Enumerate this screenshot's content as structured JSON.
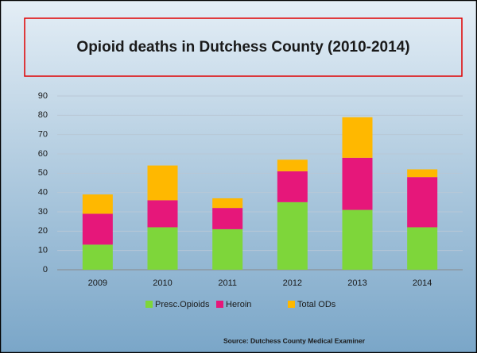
{
  "chart_data": {
    "type": "stacked_bar",
    "title": "Opioid deaths in Dutchess County (2010-2014)",
    "categories": [
      "2009",
      "2010",
      "2011",
      "2012",
      "2013",
      "2014"
    ],
    "series": [
      {
        "name": "Presc.Opioids",
        "color": "#7ed63a",
        "values": [
          13,
          22,
          21,
          35,
          31,
          22
        ]
      },
      {
        "name": "Heroin",
        "color": "#e6177a",
        "values": [
          16,
          14,
          11,
          16,
          27,
          26
        ]
      },
      {
        "name": "Total ODs",
        "color": "#ffb800",
        "values": [
          10,
          18,
          5,
          6,
          21,
          4
        ]
      }
    ],
    "ylim": [
      0,
      90
    ],
    "yticks": [
      0,
      10,
      20,
      30,
      40,
      50,
      60,
      70,
      80,
      90
    ],
    "grid": true,
    "legend": "bottom",
    "source": "Source: Dutchess County Medical Examiner"
  }
}
